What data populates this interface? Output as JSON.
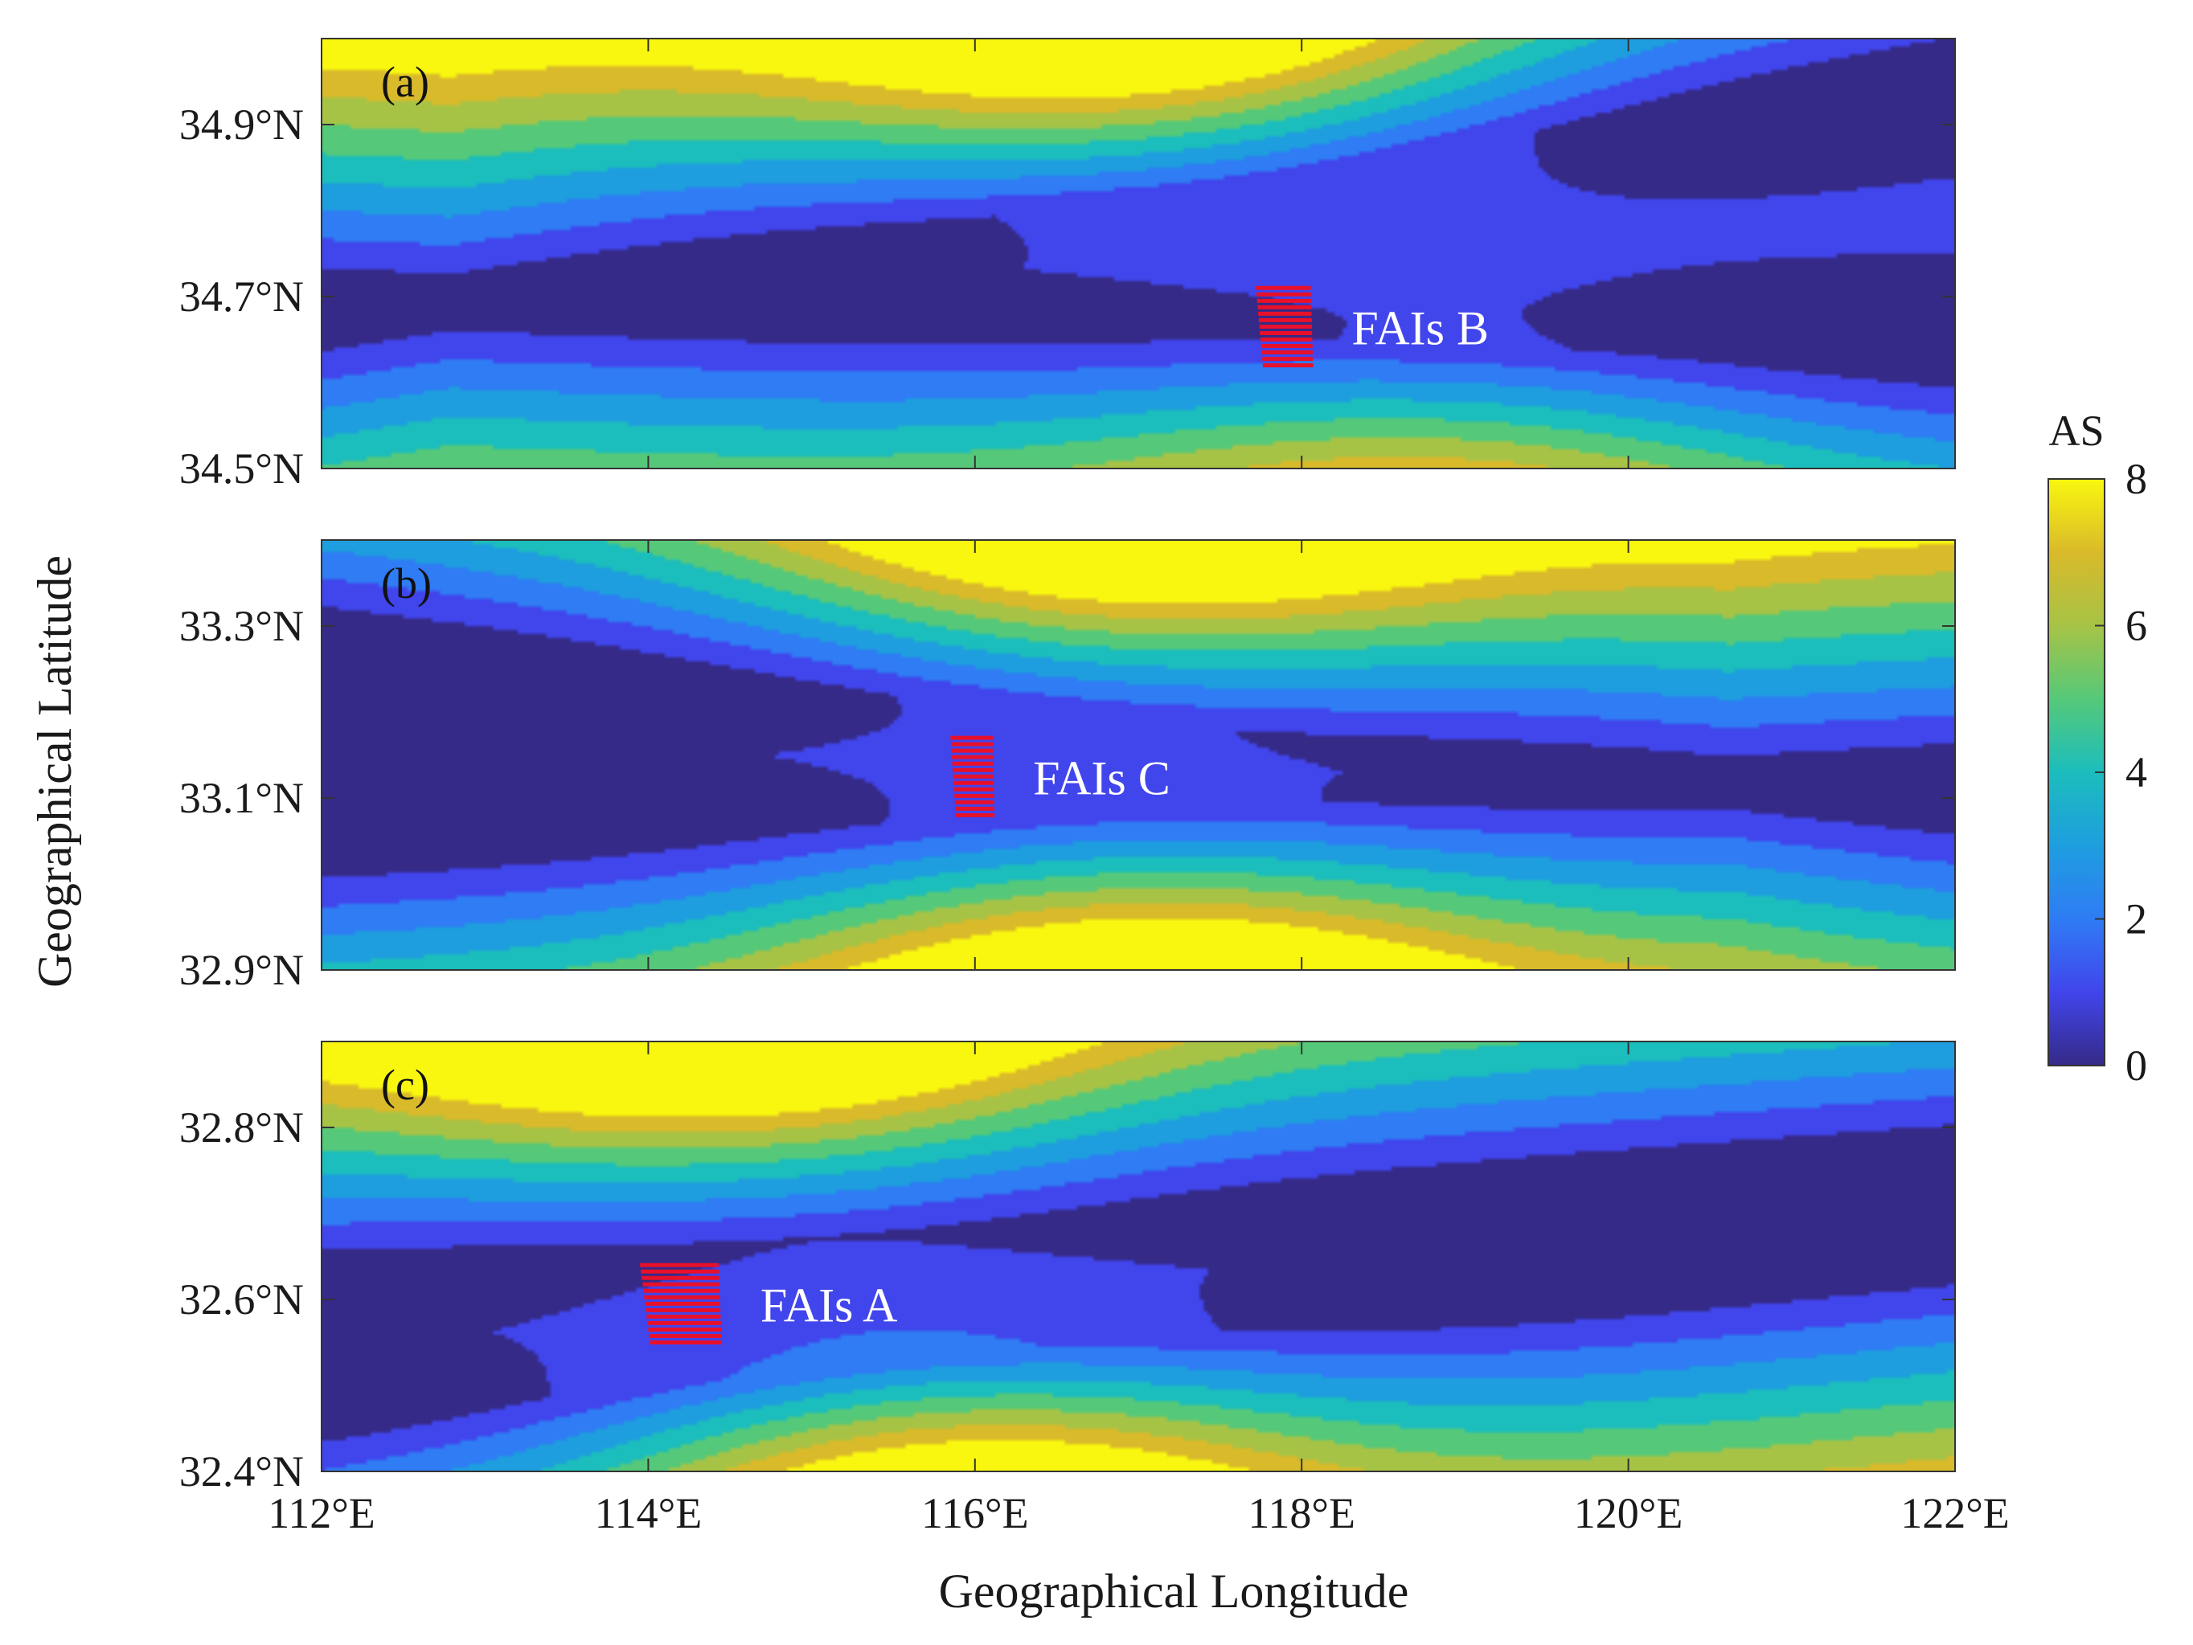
{
  "chart_data": {
    "type": "contour",
    "xlabel": "Geographical Longitude",
    "ylabel": "Geographical Latitude",
    "xlim": [
      112,
      122
    ],
    "x_ticks": [
      {
        "value": 112,
        "label": "112°E"
      },
      {
        "value": 114,
        "label": "114°E"
      },
      {
        "value": 116,
        "label": "116°E"
      },
      {
        "value": 118,
        "label": "118°E"
      },
      {
        "value": 120,
        "label": "120°E"
      },
      {
        "value": 122,
        "label": "122°E"
      }
    ],
    "colorbar": {
      "title": "AS",
      "range": [
        0,
        8
      ],
      "ticks": [
        {
          "value": 0,
          "label": "0"
        },
        {
          "value": 2,
          "label": "2"
        },
        {
          "value": 4,
          "label": "4"
        },
        {
          "value": 6,
          "label": "6"
        },
        {
          "value": 8,
          "label": "8"
        }
      ],
      "colormap": "parula",
      "colors": [
        "#352a87",
        "#4145ec",
        "#2f7cf4",
        "#1e9edf",
        "#1cbdbd",
        "#55c979",
        "#a7c346",
        "#d9ba2a",
        "#f9f70f"
      ]
    },
    "contour_levels": [
      0.8,
      1.6,
      2.4,
      3.2,
      4.0,
      4.8,
      5.6,
      6.4
    ],
    "panels": [
      {
        "label": "(a)",
        "ylim": [
          34.5,
          35.0
        ],
        "y_ticks": [
          {
            "value": 34.5,
            "label": "34.5°N"
          },
          {
            "value": 34.7,
            "label": "34.7°N"
          },
          {
            "value": 34.9,
            "label": "34.9°N"
          }
        ],
        "field": {
          "lines": [
            [
              112,
              34.67,
              122,
              34.97
            ],
            [
              112,
              34.7,
              122,
              34.62
            ]
          ],
          "peaks": [
            {
              "lon": 117.0,
              "lat": 35.06,
              "value": 6.9
            },
            {
              "lon": 118.8,
              "lat": 34.42,
              "value": 4.5
            }
          ]
        },
        "fai": {
          "name": "FAIs B",
          "lon": [
            117.72,
            118.07
          ],
          "lat": [
            34.62,
            34.71
          ]
        }
      },
      {
        "label": "(b)",
        "ylim": [
          32.9,
          33.4
        ],
        "y_ticks": [
          {
            "value": 32.9,
            "label": "32.9°N"
          },
          {
            "value": 33.1,
            "label": "33.1°N"
          },
          {
            "value": 33.3,
            "label": "33.3°N"
          }
        ],
        "field": {
          "lines": [
            [
              112,
              33.29,
              122,
              33.09
            ],
            [
              112,
              33.04,
              122,
              33.13
            ]
          ],
          "peaks": [
            {
              "lon": 116.9,
              "lat": 33.47,
              "value": 6.7
            },
            {
              "lon": 117.0,
              "lat": 32.83,
              "value": 6.7
            }
          ]
        },
        "fai": {
          "name": "FAIs C",
          "lon": [
            115.85,
            116.12
          ],
          "lat": [
            33.08,
            33.17
          ]
        }
      },
      {
        "label": "(c)",
        "ylim": [
          32.4,
          32.9
        ],
        "y_ticks": [
          {
            "value": 32.4,
            "label": "32.4°N"
          },
          {
            "value": 32.6,
            "label": "32.6°N"
          },
          {
            "value": 32.8,
            "label": "32.8°N"
          }
        ],
        "field": {
          "lines": [
            [
              112,
              32.63,
              122,
              32.77
            ],
            [
              112,
              32.46,
              122,
              32.65
            ]
          ],
          "peaks": [
            {
              "lon": 114.5,
              "lat": 32.97,
              "value": 6.8
            },
            {
              "lon": 115.9,
              "lat": 32.33,
              "value": 6.8
            }
          ]
        },
        "fai": {
          "name": "FAIs A",
          "lon": [
            113.95,
            114.45
          ],
          "lat": [
            32.55,
            32.64
          ]
        }
      }
    ]
  }
}
